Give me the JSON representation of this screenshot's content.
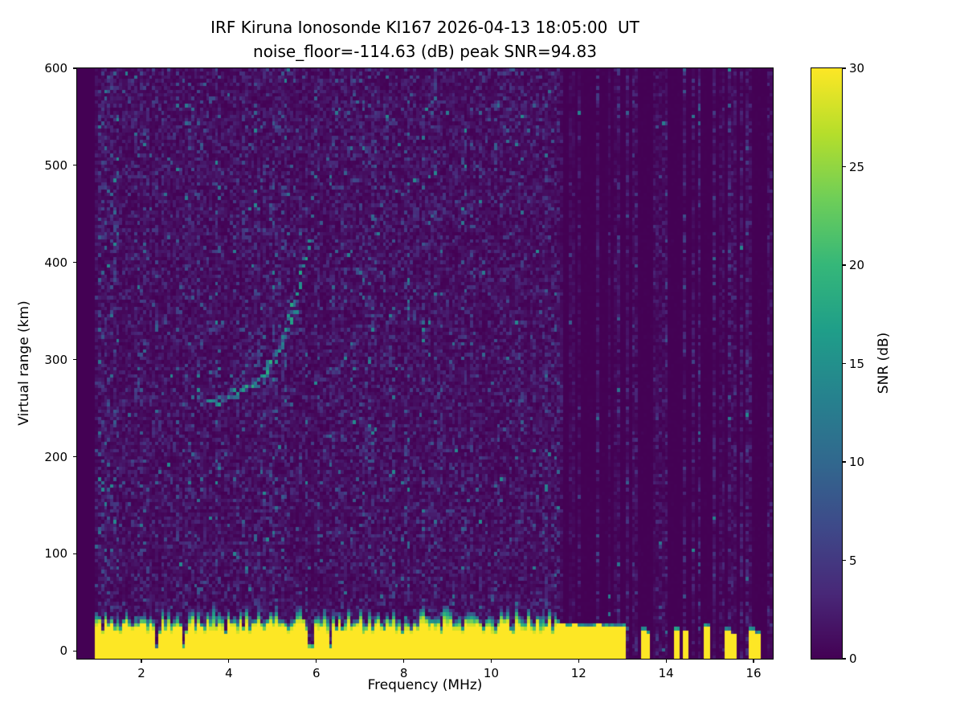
{
  "figure": {
    "background": "#ffffff"
  },
  "chart_data": {
    "type": "heatmap",
    "title": "IRF Kiruna Ionosonde KI167 2026-04-13 18:05:00  UT",
    "subtitle": "noise_floor=-114.63 (dB) peak SNR=94.83",
    "xlabel": "Frequency (MHz)",
    "ylabel": "Virtual range (km)",
    "xlim": [
      0.53,
      16.44
    ],
    "ylim": [
      -8,
      600
    ],
    "x_ticks": [
      2,
      4,
      6,
      8,
      10,
      12,
      14,
      16
    ],
    "y_ticks": [
      0,
      100,
      200,
      300,
      400,
      500,
      600
    ],
    "grid": "off",
    "colorbar": {
      "label": "SNR (dB)",
      "min": 0,
      "max": 30,
      "ticks": [
        0,
        5,
        10,
        15,
        20,
        25,
        30
      ],
      "colormap": "viridis",
      "position": "right"
    },
    "colormap_stops": [
      [
        0.0,
        "#440154"
      ],
      [
        0.111,
        "#482878"
      ],
      [
        0.222,
        "#3e4989"
      ],
      [
        0.333,
        "#31688e"
      ],
      [
        0.444,
        "#26828e"
      ],
      [
        0.556,
        "#1f9e89"
      ],
      [
        0.667,
        "#35b779"
      ],
      [
        0.778,
        "#6ece58"
      ],
      [
        0.889,
        "#b5de2b"
      ],
      [
        1.0,
        "#fde725"
      ]
    ],
    "annotations": {
      "noise_floor_db": -114.63,
      "peak_snr_db": 94.83
    },
    "features": {
      "data_start_mhz": 0.97,
      "background_snr_db": [
        0,
        3
      ],
      "ground_clutter": {
        "freq_min": 0.97,
        "freq_max": 11.57,
        "snr_db": 30,
        "top_km_min": 16,
        "top_km_max": 30,
        "fringe_km": [
          4,
          17
        ],
        "notches": [
          2.35,
          2.98,
          5.88,
          6.34
        ],
        "notch_half_width": 0.05
      },
      "rf_stripes": [
        [
          11.64,
          0.06,
          27
        ],
        [
          11.77,
          0.06,
          25
        ],
        [
          11.9,
          0.06,
          27
        ],
        [
          12.03,
          0.06,
          24
        ],
        [
          12.16,
          0.06,
          26
        ],
        [
          12.3,
          0.06,
          25
        ],
        [
          12.44,
          0.06,
          27
        ],
        [
          12.58,
          0.06,
          24
        ],
        [
          12.72,
          0.06,
          26
        ],
        [
          12.86,
          0.06,
          25
        ],
        [
          13.0,
          0.06,
          26
        ],
        [
          13.46,
          0.07,
          22
        ],
        [
          13.6,
          0.05,
          18
        ],
        [
          14.26,
          0.07,
          23
        ],
        [
          14.44,
          0.05,
          20
        ],
        [
          14.95,
          0.07,
          24
        ],
        [
          15.42,
          0.06,
          22
        ],
        [
          15.55,
          0.04,
          16
        ],
        [
          15.96,
          0.07,
          23
        ],
        [
          16.1,
          0.05,
          19
        ]
      ],
      "echo_trace": {
        "snr_min": 8,
        "snr_max": 19,
        "points": [
          [
            3.5,
            256
          ],
          [
            3.62,
            256
          ],
          [
            3.74,
            257
          ],
          [
            3.86,
            259
          ],
          [
            3.98,
            261
          ],
          [
            4.1,
            263
          ],
          [
            4.22,
            265
          ],
          [
            4.34,
            268
          ],
          [
            4.46,
            271
          ],
          [
            4.58,
            275
          ],
          [
            4.7,
            280
          ],
          [
            4.82,
            286
          ],
          [
            4.94,
            293
          ],
          [
            5.05,
            301
          ],
          [
            5.15,
            310
          ],
          [
            5.25,
            321
          ],
          [
            5.34,
            333
          ],
          [
            5.43,
            346
          ],
          [
            5.51,
            360
          ],
          [
            5.59,
            374
          ],
          [
            5.67,
            389
          ],
          [
            5.75,
            403
          ],
          [
            5.82,
            414
          ],
          [
            5.88,
            421
          ]
        ]
      },
      "scatter_echoes": [
        [
          5.9,
          447,
          10
        ],
        [
          5.94,
          468,
          10
        ],
        [
          5.97,
          490,
          11
        ],
        [
          5.62,
          428,
          9
        ],
        [
          6.05,
          300,
          8
        ],
        [
          3.3,
          262,
          9
        ]
      ]
    }
  }
}
